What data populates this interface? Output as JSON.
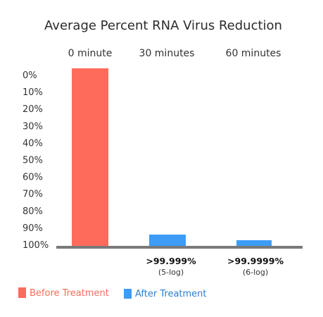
{
  "colors": {
    "before": "#ff6b5b",
    "after": "#3d9cf5",
    "baseline": "#7a7a7a",
    "text": "#333333"
  },
  "chart_data": {
    "type": "bar",
    "title": "Average Percent RNA Virus Reduction",
    "categories": [
      "0 minute",
      "30 minutes",
      "60 minutes"
    ],
    "y_axis": {
      "inverted": true,
      "unit": "%",
      "ylim": [
        0,
        100
      ],
      "ticks": [
        "0%",
        "10%",
        "20%",
        "30%",
        "40%",
        "50%",
        "60%",
        "70%",
        "80%",
        "90%",
        "100%"
      ]
    },
    "grid": false,
    "legend_position": "bottom-left",
    "series": [
      {
        "name": "Before Treatment",
        "color": "#ff6b5b",
        "values": [
          0,
          null,
          null
        ]
      },
      {
        "name": "After Treatment",
        "color": "#3d9cf5",
        "values": [
          null,
          99.999,
          99.9999
        ]
      }
    ],
    "data_labels": [
      {
        "category": "30 minutes",
        "text": ">99.999%",
        "sub": "(5-log)"
      },
      {
        "category": "60 minutes",
        "text": ">99.9999%",
        "sub": "(6-log)"
      }
    ]
  }
}
